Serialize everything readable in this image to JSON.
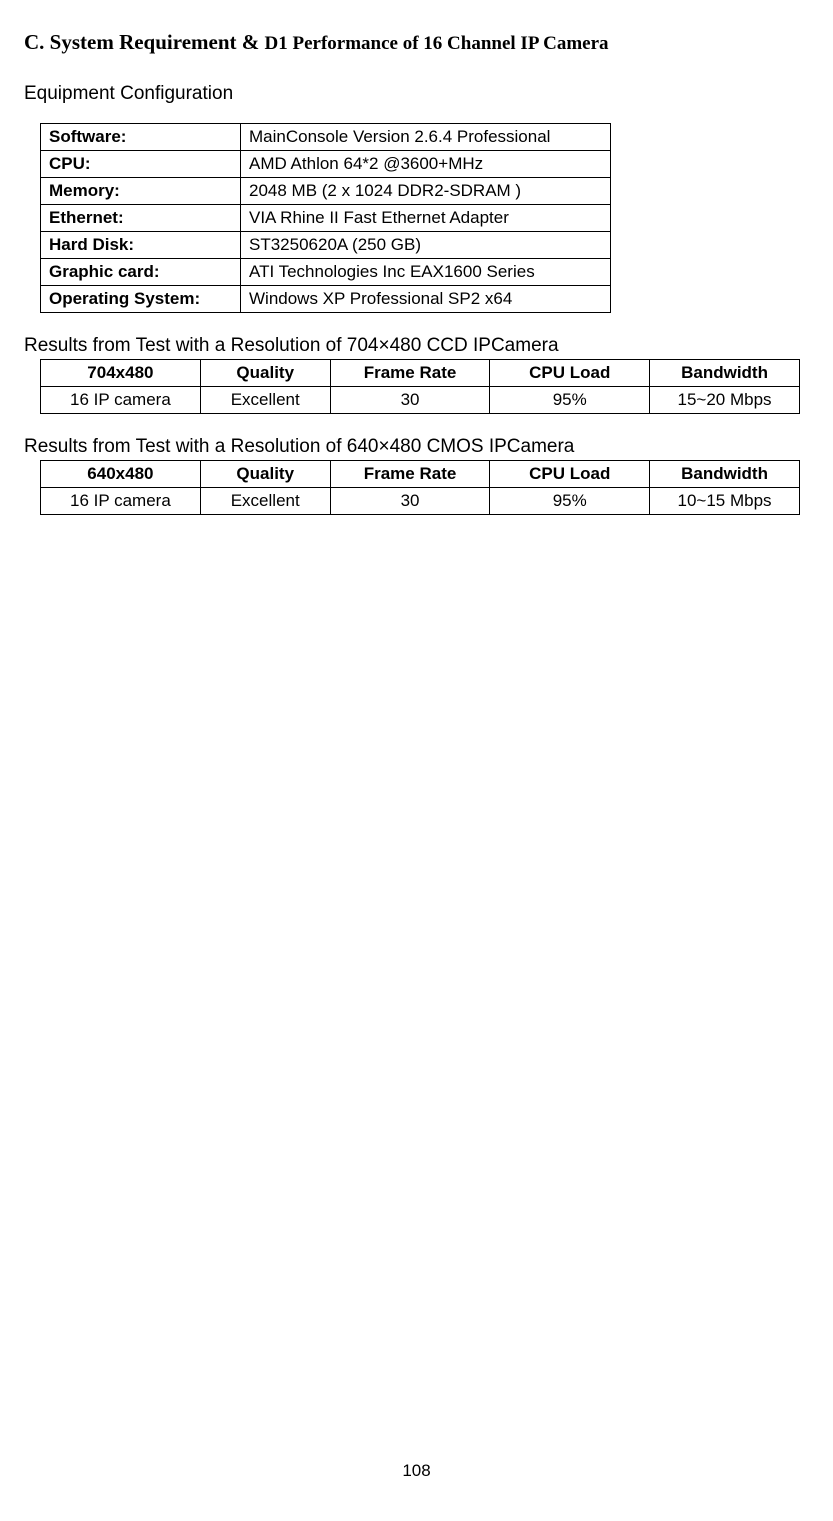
{
  "heading": {
    "prefix": "C. System Requirement & ",
    "suffix": "D1 Performance of 16 Channel IP Camera"
  },
  "equipmentTitle": "Equipment Configuration",
  "config": {
    "rows": [
      {
        "label": "Software:",
        "value": "MainConsole Version 2.6.4 Professional"
      },
      {
        "label": "CPU:",
        "value": "AMD Athlon 64*2 @3600+MHz"
      },
      {
        "label": "Memory:",
        "value": "2048 MB (2 x 1024 DDR2-SDRAM )"
      },
      {
        "label": "Ethernet:",
        "value": "VIA Rhine II Fast Ethernet Adapter"
      },
      {
        "label": "Hard Disk:",
        "value": "ST3250620A (250 GB)"
      },
      {
        "label": "Graphic card:",
        "value": "ATI Technologies Inc EAX1600 Series"
      },
      {
        "label": "Operating System:",
        "value": "Windows XP Professional SP2 x64"
      }
    ]
  },
  "result1": {
    "title": "Results from Test with a Resolution of 704×480 CCD IPCamera",
    "headers": [
      "704x480",
      "Quality",
      "Frame Rate",
      "CPU Load",
      "Bandwidth"
    ],
    "row": [
      "16 IP camera",
      "Excellent",
      "30",
      "95%",
      "15~20 Mbps"
    ]
  },
  "result2": {
    "title": "Results from Test with a Resolution of 640×480 CMOS IPCamera",
    "headers": [
      "640x480",
      "Quality",
      "Frame Rate",
      "CPU Load",
      "Bandwidth"
    ],
    "row": [
      "16 IP camera",
      "Excellent",
      "30",
      "95%",
      "10~15 Mbps"
    ]
  },
  "pageNumber": "108"
}
